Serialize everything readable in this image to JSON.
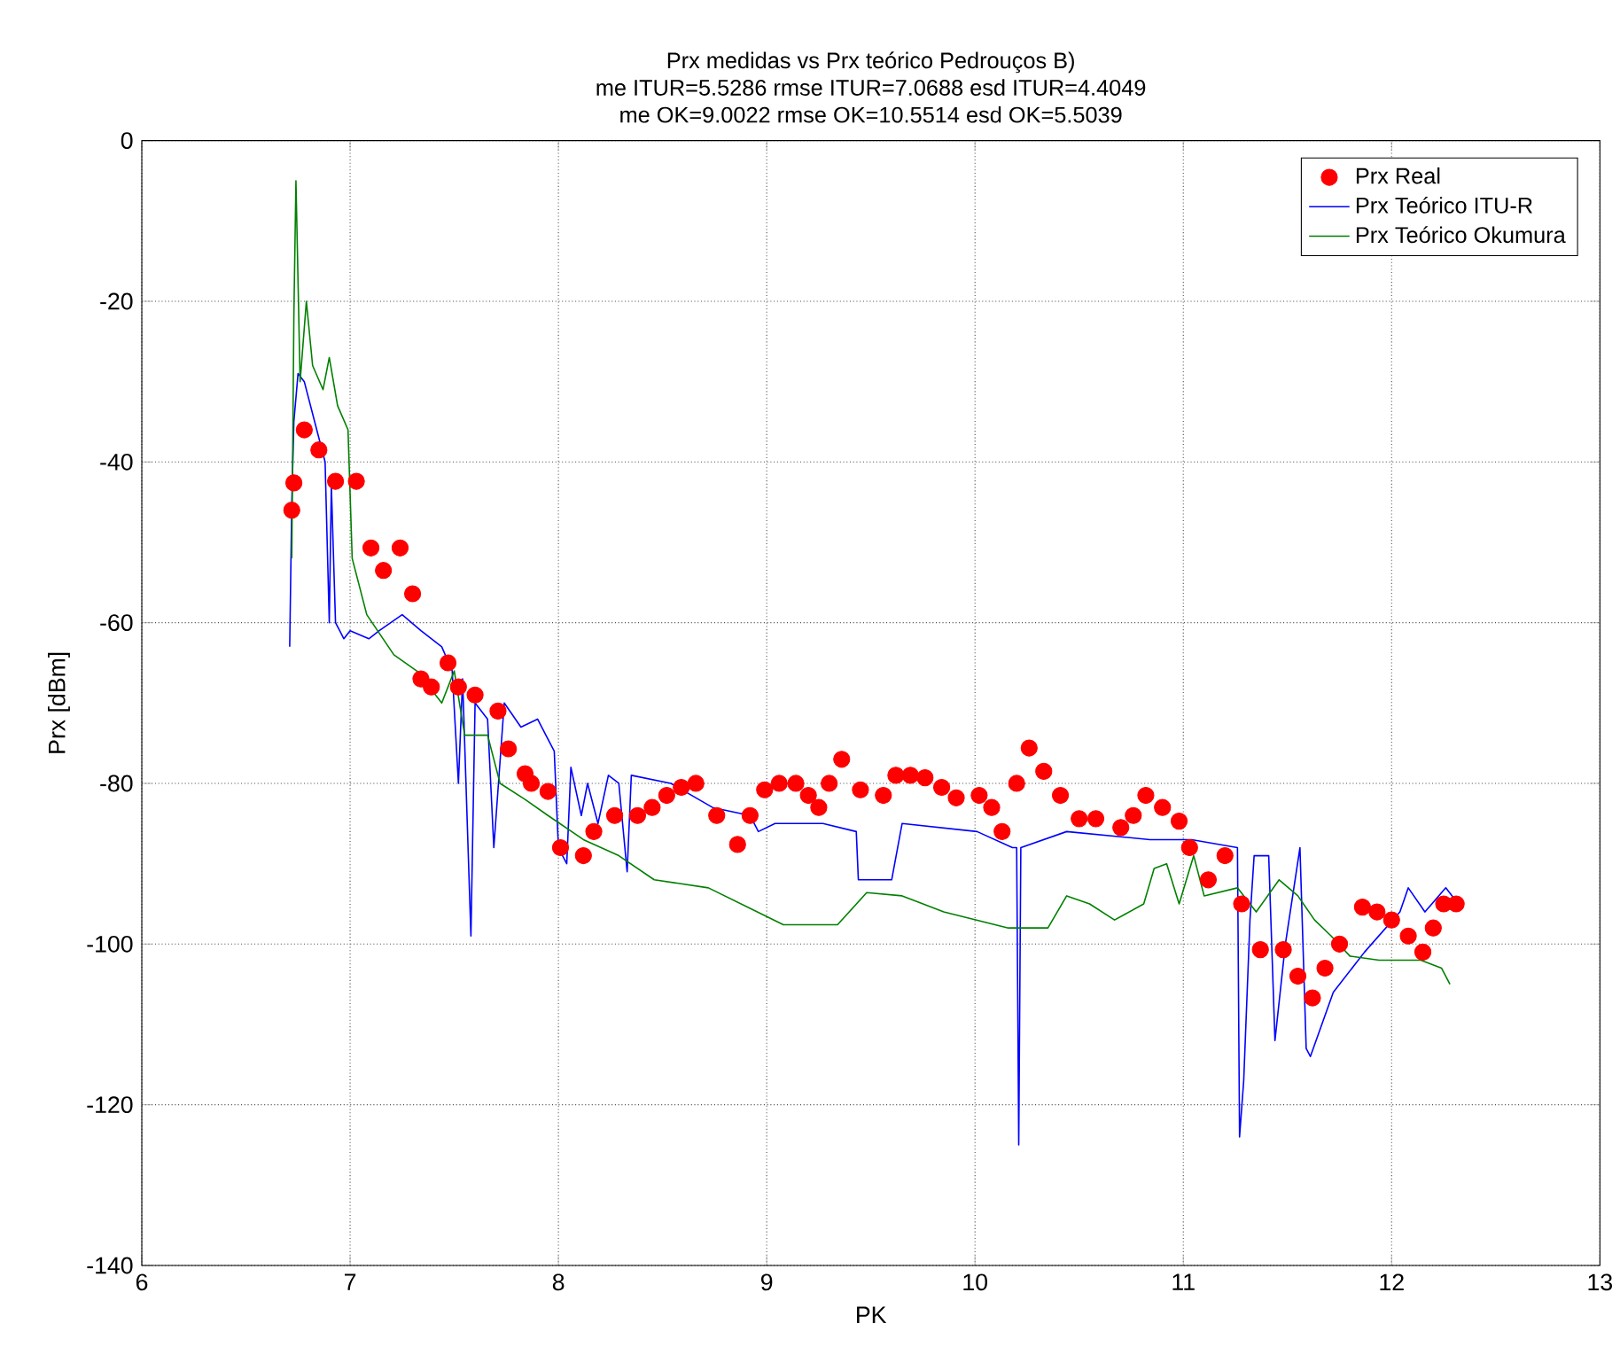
{
  "chart_data": {
    "type": "line",
    "title": "Prx medidas vs Prx teórico Pedrouços B)",
    "subtitle": "me ITUR=5.5286 rmse ITUR=7.0688 esd ITUR=4.4049",
    "annotations": [
      "me OK=9.0022 rmse OK=10.5514 esd OK=5.5039"
    ],
    "xlabel": "PK",
    "ylabel": "Prx [dBm]",
    "xlim": [
      6,
      13
    ],
    "ylim": [
      -140,
      0
    ],
    "xticks": [
      6,
      7,
      8,
      9,
      10,
      11,
      12,
      13
    ],
    "yticks": [
      -140,
      -120,
      -100,
      -80,
      -60,
      -40,
      -20,
      0
    ],
    "grid": true,
    "legend": "top right",
    "series": [
      {
        "name": "Prx Real",
        "type": "scatter",
        "marker": "circle",
        "color": "#ff0000",
        "x": [
          6.72,
          6.73,
          6.78,
          6.85,
          6.93,
          7.03,
          7.1,
          7.16,
          7.24,
          7.3,
          7.34,
          7.39,
          7.47,
          7.52,
          7.6,
          7.71,
          7.76,
          7.84,
          7.87,
          7.95,
          8.01,
          8.12,
          8.17,
          8.27,
          8.38,
          8.45,
          8.52,
          8.59,
          8.66,
          8.76,
          8.86,
          8.92,
          8.99,
          9.06,
          9.14,
          9.2,
          9.25,
          9.3,
          9.36,
          9.45,
          9.56,
          9.62,
          9.69,
          9.76,
          9.84,
          9.91,
          10.02,
          10.08,
          10.13,
          10.2,
          10.26,
          10.33,
          10.41,
          10.5,
          10.58,
          10.7,
          10.76,
          10.82,
          10.9,
          10.98,
          11.03,
          11.12,
          11.2,
          11.28,
          11.37,
          11.48,
          11.55,
          11.62,
          11.68,
          11.75,
          11.86,
          11.93,
          12.0,
          12.08,
          12.15,
          12.2,
          12.25,
          12.31
        ],
        "values": [
          -46,
          -42.6,
          -36,
          -38.5,
          -42.4,
          -42.4,
          -50.7,
          -53.5,
          -50.7,
          -56.4,
          -67,
          -68,
          -65,
          -68,
          -69,
          -71,
          -75.7,
          -78.8,
          -80,
          -81,
          -88,
          -89,
          -86,
          -84,
          -84,
          -83,
          -81.5,
          -80.5,
          -80,
          -84,
          -87.6,
          -84,
          -80.8,
          -80,
          -80,
          -81.5,
          -83,
          -80,
          -77,
          -80.8,
          -81.5,
          -79,
          -79,
          -79.3,
          -80.5,
          -81.8,
          -81.5,
          -83,
          -86,
          -80,
          -75.6,
          -78.5,
          -81.5,
          -84.4,
          -84.4,
          -85.5,
          -84,
          -81.5,
          -83,
          -84.7,
          -88,
          -92,
          -89,
          -95,
          -100.7,
          -100.7,
          -104,
          -106.7,
          -103,
          -100,
          -95.4,
          -96,
          -97,
          -99,
          -101,
          -98,
          -95,
          -95
        ]
      },
      {
        "name": "Prx Teórico ITU-R",
        "color": "#0000ff",
        "x": [
          6.71,
          6.72,
          6.73,
          6.75,
          6.78,
          6.83,
          6.88,
          6.9,
          6.91,
          6.93,
          6.95,
          6.97,
          7.0,
          7.09,
          7.14,
          7.25,
          7.34,
          7.44,
          7.49,
          7.52,
          7.54,
          7.58,
          7.6,
          7.66,
          7.69,
          7.74,
          7.82,
          7.9,
          7.94,
          7.98,
          8.0,
          8.04,
          8.06,
          8.11,
          8.14,
          8.19,
          8.24,
          8.29,
          8.33,
          8.35,
          8.54,
          8.74,
          8.92,
          8.96,
          9.04,
          9.27,
          9.43,
          9.44,
          9.6,
          9.65,
          10.01,
          10.18,
          10.2,
          10.21,
          10.22,
          10.44,
          10.84,
          11.04,
          11.26,
          11.27,
          11.29,
          11.32,
          11.34,
          11.41,
          11.44,
          11.49,
          11.56,
          11.59,
          11.61,
          11.72,
          11.87,
          12.04,
          12.08,
          12.16,
          12.26,
          12.32
        ],
        "values": [
          -63,
          -45,
          -35,
          -29,
          -30,
          -35,
          -40,
          -60,
          -43,
          -60,
          -61,
          -62,
          -61,
          -62,
          -61,
          -59,
          -61,
          -63,
          -66,
          -80,
          -67,
          -99,
          -70,
          -72,
          -88,
          -70,
          -73,
          -72,
          -74,
          -76,
          -88,
          -90,
          -78,
          -84,
          -80,
          -85,
          -79,
          -80,
          -91,
          -79,
          -80,
          -83,
          -84,
          -86,
          -85,
          -85,
          -86,
          -92,
          -92,
          -85,
          -86,
          -88,
          -88,
          -125,
          -88,
          -86,
          -87,
          -87,
          -88,
          -124,
          -117,
          -97,
          -89,
          -89,
          -112,
          -100,
          -88,
          -113,
          -114,
          -106,
          -101,
          -96,
          -93,
          -96,
          -93,
          -95
        ]
      },
      {
        "name": "Prx Teórico Okumura",
        "color": "#008000",
        "x": [
          6.72,
          6.73,
          6.74,
          6.76,
          6.79,
          6.82,
          6.87,
          6.9,
          6.94,
          6.99,
          7.01,
          7.08,
          7.21,
          7.32,
          7.44,
          7.5,
          7.55,
          7.66,
          7.72,
          7.84,
          7.95,
          8.12,
          8.29,
          8.46,
          8.72,
          9.08,
          9.34,
          9.48,
          9.65,
          9.85,
          10.16,
          10.35,
          10.44,
          10.55,
          10.67,
          10.81,
          10.86,
          10.92,
          10.98,
          11.05,
          11.1,
          11.26,
          11.35,
          11.46,
          11.55,
          11.63,
          11.71,
          11.8,
          11.94,
          12.03,
          12.14,
          12.24,
          12.28
        ],
        "values": [
          -52,
          -22,
          -5,
          -30,
          -20,
          -28,
          -31,
          -27,
          -33,
          -36,
          -52,
          -59,
          -64,
          -66,
          -70,
          -66,
          -74,
          -74,
          -80,
          -82,
          -84,
          -87,
          -89,
          -92,
          -93,
          -97.6,
          -97.6,
          -93.6,
          -94,
          -96,
          -98,
          -98,
          -94,
          -95,
          -97,
          -95,
          -90.6,
          -90,
          -95,
          -89,
          -94,
          -93,
          -96,
          -92,
          -94,
          -97,
          -99,
          -101.5,
          -102,
          -102,
          -102,
          -103,
          -105
        ]
      }
    ]
  }
}
